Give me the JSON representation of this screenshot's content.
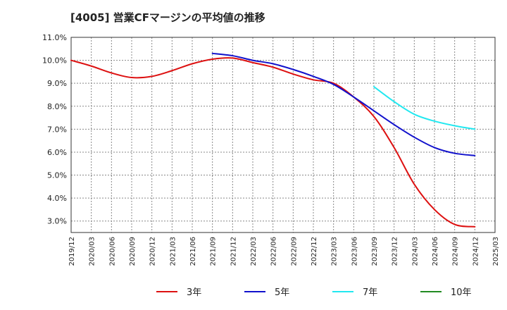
{
  "chart_data": {
    "type": "line",
    "title": "[4005]  営業CFマージンの平均値の推移",
    "x_ticks": [
      "2019/12",
      "2020/03",
      "2020/06",
      "2020/09",
      "2020/12",
      "2021/03",
      "2021/06",
      "2021/09",
      "2021/12",
      "2022/03",
      "2022/06",
      "2022/09",
      "2022/12",
      "2023/03",
      "2023/06",
      "2023/09",
      "2023/12",
      "2024/03",
      "2024/06",
      "2024/09",
      "2024/12",
      "2025/03"
    ],
    "y_ticks": [
      "3.0%",
      "4.0%",
      "5.0%",
      "6.0%",
      "7.0%",
      "8.0%",
      "9.0%",
      "10.0%",
      "11.0%"
    ],
    "ylim": [
      2.5,
      11.0
    ],
    "grid": true,
    "legend_position": "bottom",
    "series": [
      {
        "name": "3年",
        "color": "#dd1111",
        "x": [
          "2019/12",
          "2020/03",
          "2020/06",
          "2020/09",
          "2020/12",
          "2021/03",
          "2021/06",
          "2021/09",
          "2021/12",
          "2022/03",
          "2022/06",
          "2022/09",
          "2022/12",
          "2023/03",
          "2023/06",
          "2023/09",
          "2023/12",
          "2024/03",
          "2024/06",
          "2024/09",
          "2024/12"
        ],
        "values": [
          10.0,
          9.75,
          9.45,
          9.25,
          9.3,
          9.55,
          9.85,
          10.05,
          10.1,
          9.9,
          9.7,
          9.4,
          9.15,
          9.0,
          8.4,
          7.55,
          6.2,
          4.6,
          3.5,
          2.85,
          2.75
        ]
      },
      {
        "name": "5年",
        "color": "#1111cc",
        "x": [
          "2021/09",
          "2021/12",
          "2022/03",
          "2022/06",
          "2022/09",
          "2022/12",
          "2023/03",
          "2023/06",
          "2023/09",
          "2023/12",
          "2024/03",
          "2024/06",
          "2024/09",
          "2024/12"
        ],
        "values": [
          10.3,
          10.2,
          10.0,
          9.85,
          9.6,
          9.3,
          8.95,
          8.4,
          7.8,
          7.2,
          6.65,
          6.2,
          5.95,
          5.85
        ]
      },
      {
        "name": "7年",
        "color": "#22e8f0",
        "x": [
          "2023/09",
          "2023/12",
          "2024/03",
          "2024/06",
          "2024/09",
          "2024/12"
        ],
        "values": [
          8.85,
          8.2,
          7.65,
          7.35,
          7.15,
          7.0
        ]
      },
      {
        "name": "10年",
        "color": "#228b22",
        "x": [],
        "values": []
      }
    ]
  }
}
